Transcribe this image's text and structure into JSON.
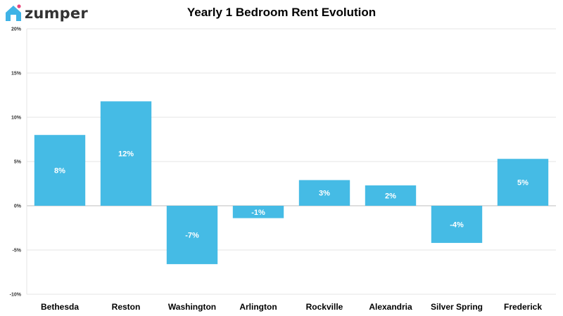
{
  "brand": {
    "name": "zumper",
    "icon": "house-icon",
    "icon_color": "#3fb3e6",
    "dot_color": "#e8457a"
  },
  "chart_data": {
    "type": "bar",
    "title": "Yearly 1 Bedroom Rent Evolution",
    "categories": [
      "Bethesda",
      "Reston",
      "Washington",
      "Arlington",
      "Rockville",
      "Alexandria",
      "Silver Spring",
      "Frederick"
    ],
    "values": [
      8.0,
      11.8,
      -6.6,
      -1.4,
      2.9,
      2.3,
      -4.2,
      5.3
    ],
    "data_labels": [
      "8%",
      "12%",
      "-7%",
      "-1%",
      "3%",
      "2%",
      "-4%",
      "5%"
    ],
    "ylim": [
      -10,
      20
    ],
    "yticks": [
      -10,
      -5,
      0,
      5,
      10,
      15,
      20
    ],
    "ytick_labels": [
      "-10%",
      "-5%",
      "0%",
      "5%",
      "10%",
      "15%",
      "20%"
    ],
    "grid": true,
    "bar_color": "#45bbe5",
    "xlabel": "",
    "ylabel": ""
  }
}
